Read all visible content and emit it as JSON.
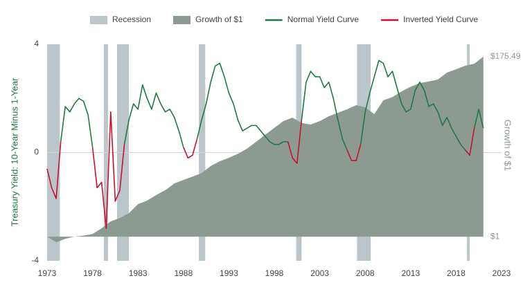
{
  "chart_data": {
    "type": "line",
    "ylabel": "Treasury Yield: 10-Year Minus 1-Year",
    "y2label": "Growth of $1",
    "xlim": [
      1973,
      2023
    ],
    "xticks": [
      1973,
      1978,
      1983,
      1988,
      1993,
      1998,
      2003,
      2008,
      2013,
      2018,
      2023
    ],
    "ylim": [
      -4,
      4
    ],
    "yticks": [
      -4,
      0,
      4
    ],
    "y2lim": [
      0.5,
      250
    ],
    "y2log": true,
    "y2ticks": [
      {
        "value": 1,
        "label": "$1"
      },
      {
        "value": 175.49,
        "label": "$175.49"
      }
    ],
    "zero_line": true,
    "legend": "top",
    "recessions": {
      "name": "Recession",
      "color": "#bcc5c9",
      "ranges": [
        [
          1973.0,
          1974.4
        ],
        [
          1979.25,
          1979.7
        ],
        [
          1980.7,
          1982.0
        ],
        [
          1989.7,
          1990.4
        ],
        [
          2000.4,
          2001.0
        ],
        [
          2007.1,
          2008.6
        ],
        [
          2019.2,
          2019.5
        ]
      ]
    },
    "x": [
      1973,
      1973.5,
      1974,
      1974.5,
      1975,
      1975.5,
      1976,
      1976.5,
      1977,
      1977.5,
      1978,
      1978.5,
      1979,
      1979.5,
      1980,
      1980.5,
      1981,
      1981.5,
      1982,
      1982.5,
      1983,
      1983.5,
      1984,
      1984.5,
      1985,
      1985.5,
      1986,
      1986.5,
      1987,
      1987.5,
      1988,
      1988.5,
      1989,
      1989.5,
      1990,
      1990.5,
      1991,
      1991.5,
      1992,
      1992.5,
      1993,
      1993.5,
      1994,
      1994.5,
      1995,
      1995.5,
      1996,
      1996.5,
      1997,
      1997.5,
      1998,
      1998.5,
      1999,
      1999.5,
      2000,
      2000.5,
      2001,
      2001.5,
      2002,
      2002.5,
      2003,
      2003.5,
      2004,
      2004.5,
      2005,
      2005.5,
      2006,
      2006.5,
      2007,
      2007.5,
      2008,
      2008.5,
      2009,
      2009.5,
      2010,
      2010.5,
      2011,
      2011.5,
      2012,
      2012.5,
      2013,
      2013.5,
      2014,
      2014.5,
      2015,
      2015.5,
      2016,
      2016.5,
      2017,
      2017.5,
      2018,
      2018.5,
      2019,
      2019.5,
      2020,
      2020.5,
      2021
    ],
    "series": [
      {
        "name": "Growth of $1",
        "type": "area",
        "axis": "y2",
        "color": "#8c9a92",
        "x": [
          1973,
          1974,
          1975,
          1976,
          1977,
          1978,
          1979,
          1980,
          1981,
          1982,
          1983,
          1984,
          1985,
          1986,
          1987,
          1988,
          1989,
          1990,
          1991,
          1992,
          1993,
          1994,
          1995,
          1996,
          1997,
          1998,
          1999,
          2000,
          2001,
          2002,
          2003,
          2004,
          2005,
          2006,
          2007,
          2008,
          2009,
          2010,
          2011,
          2012,
          2013,
          2014,
          2015,
          2016,
          2017,
          2018,
          2019,
          2020,
          2021
        ],
        "values": [
          1,
          0.85,
          0.94,
          1.0,
          1.03,
          1.08,
          1.27,
          1.55,
          1.71,
          1.96,
          2.54,
          2.81,
          3.3,
          3.8,
          4.6,
          5.1,
          5.6,
          6.2,
          7.6,
          8.7,
          9.6,
          10.8,
          12.5,
          15.2,
          18.6,
          22.7,
          27.6,
          30.5,
          26.1,
          25,
          27.6,
          31.7,
          35,
          38.7,
          43.6,
          41,
          33.7,
          50,
          55,
          64.5,
          74,
          82,
          86,
          91,
          111,
          122,
          135,
          143,
          175.49
        ]
      },
      {
        "name": "Normal Yield Curve",
        "type": "line",
        "color": "#1e7a45",
        "values": [
          null,
          null,
          null,
          0.4,
          1.7,
          1.5,
          1.8,
          2.0,
          1.9,
          1.4,
          0.2,
          null,
          null,
          null,
          1.5,
          null,
          null,
          0.3,
          1.2,
          1.8,
          1.6,
          2.5,
          2.0,
          1.6,
          2.2,
          1.8,
          1.5,
          1.6,
          1.3,
          0.8,
          0.2,
          null,
          null,
          0.5,
          1.2,
          1.8,
          2.6,
          3.2,
          3.3,
          2.8,
          2.2,
          1.8,
          1.2,
          0.8,
          0.9,
          1.0,
          1.0,
          0.8,
          0.6,
          0.4,
          0.3,
          0.3,
          0.4,
          0.4,
          null,
          null,
          1.2,
          2.6,
          3.0,
          2.8,
          2.8,
          2.4,
          2.6,
          2.0,
          1.2,
          0.5,
          0.1,
          null,
          null,
          0.3,
          1.5,
          2.2,
          2.8,
          3.4,
          3.3,
          2.8,
          3.0,
          2.4,
          1.8,
          1.5,
          1.6,
          2.3,
          2.6,
          2.3,
          1.7,
          1.8,
          1.5,
          1.0,
          1.3,
          0.9,
          0.6,
          0.3,
          0.1,
          null,
          0.9,
          1.6,
          0.9
        ]
      },
      {
        "name": "Inverted Yield Curve",
        "type": "line",
        "color": "#c8102e",
        "values": [
          -0.6,
          -1.3,
          -1.7,
          0.4,
          null,
          null,
          null,
          null,
          null,
          null,
          0.2,
          -1.3,
          -1.1,
          -2.8,
          1.5,
          -1.8,
          -1.4,
          0.3,
          null,
          null,
          null,
          null,
          null,
          null,
          null,
          null,
          null,
          null,
          null,
          null,
          0.2,
          -0.2,
          -0.1,
          0.5,
          null,
          null,
          null,
          null,
          null,
          null,
          null,
          null,
          null,
          null,
          null,
          null,
          null,
          null,
          null,
          null,
          null,
          null,
          null,
          0.4,
          -0.2,
          -0.4,
          1.2,
          null,
          null,
          null,
          null,
          null,
          null,
          null,
          null,
          null,
          0.1,
          -0.3,
          -0.3,
          0.3,
          null,
          null,
          null,
          null,
          null,
          null,
          null,
          null,
          null,
          null,
          null,
          null,
          null,
          null,
          null,
          null,
          null,
          null,
          null,
          null,
          null,
          null,
          0.1,
          -0.1,
          0.9,
          null,
          null
        ]
      }
    ]
  }
}
